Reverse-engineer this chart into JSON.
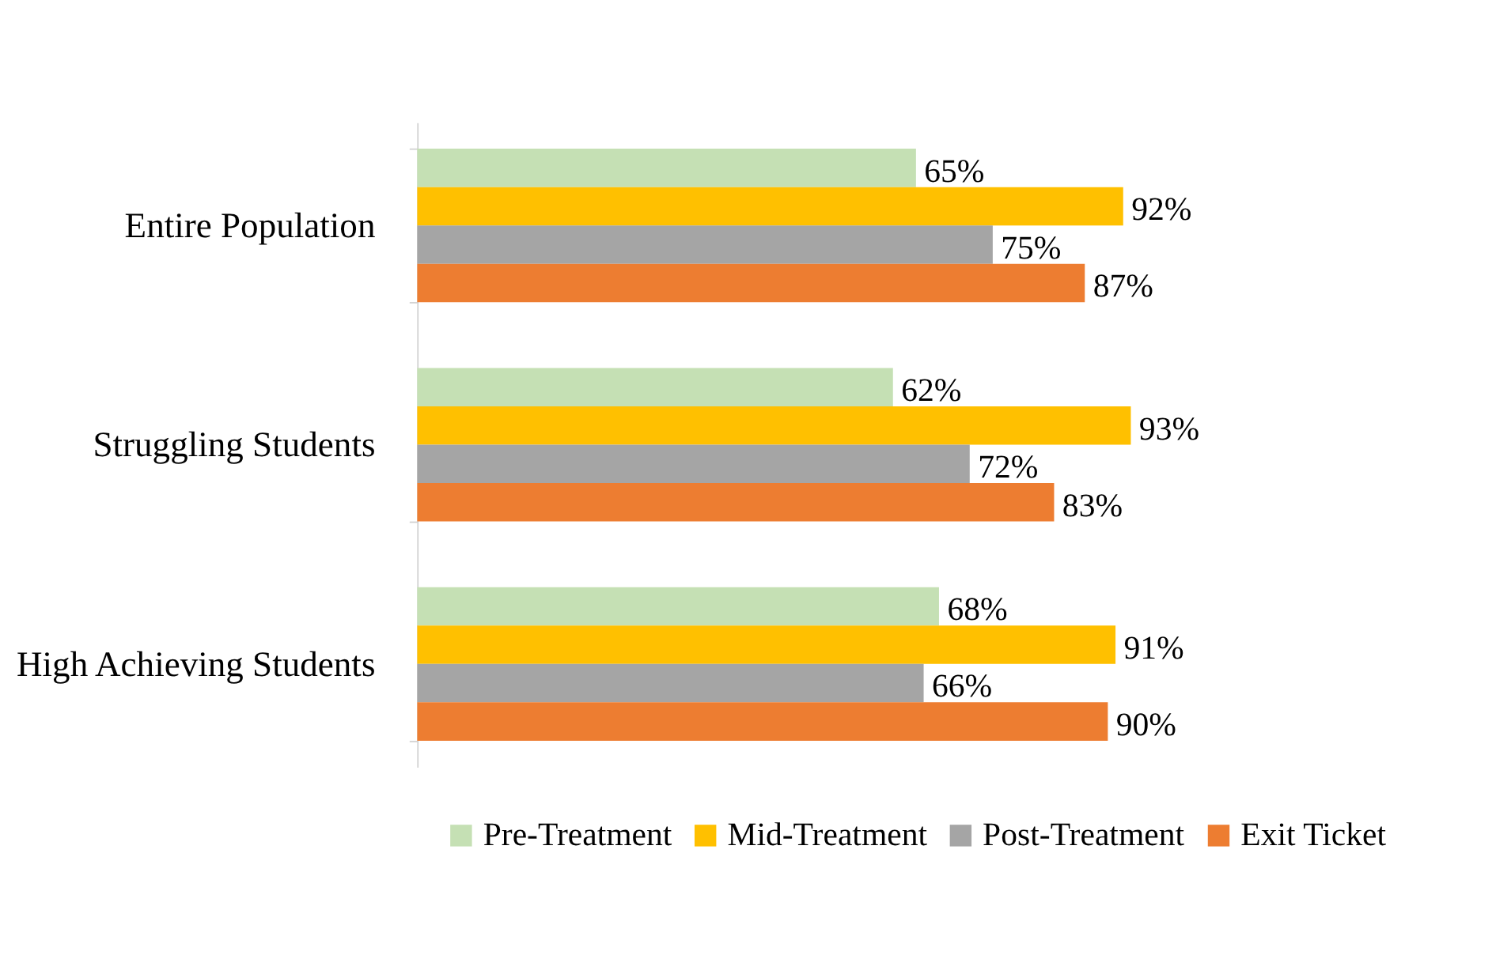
{
  "chart_data": {
    "type": "bar",
    "orientation": "horizontal",
    "categories": [
      "Entire Population",
      "Struggling Students",
      "High Achieving Students"
    ],
    "series": [
      {
        "name": "Pre-Treatment",
        "color": "#c5e0b4",
        "values": [
          65,
          62,
          68
        ],
        "value_labels": [
          "65%",
          "62%",
          "68%"
        ]
      },
      {
        "name": "Mid-Treatment",
        "color": "#ffc000",
        "values": [
          92,
          93,
          91
        ],
        "value_labels": [
          "92%",
          "93%",
          "91%"
        ]
      },
      {
        "name": "Post-Treatment",
        "color": "#a5a5a5",
        "values": [
          75,
          72,
          66
        ],
        "value_labels": [
          "75%",
          "72%",
          "66%"
        ]
      },
      {
        "name": "Exit Ticket",
        "color": "#ed7d31",
        "values": [
          87,
          83,
          90
        ],
        "value_labels": [
          "87%",
          "83%",
          "90%"
        ]
      }
    ],
    "legend": "bottom",
    "grid": false
  }
}
